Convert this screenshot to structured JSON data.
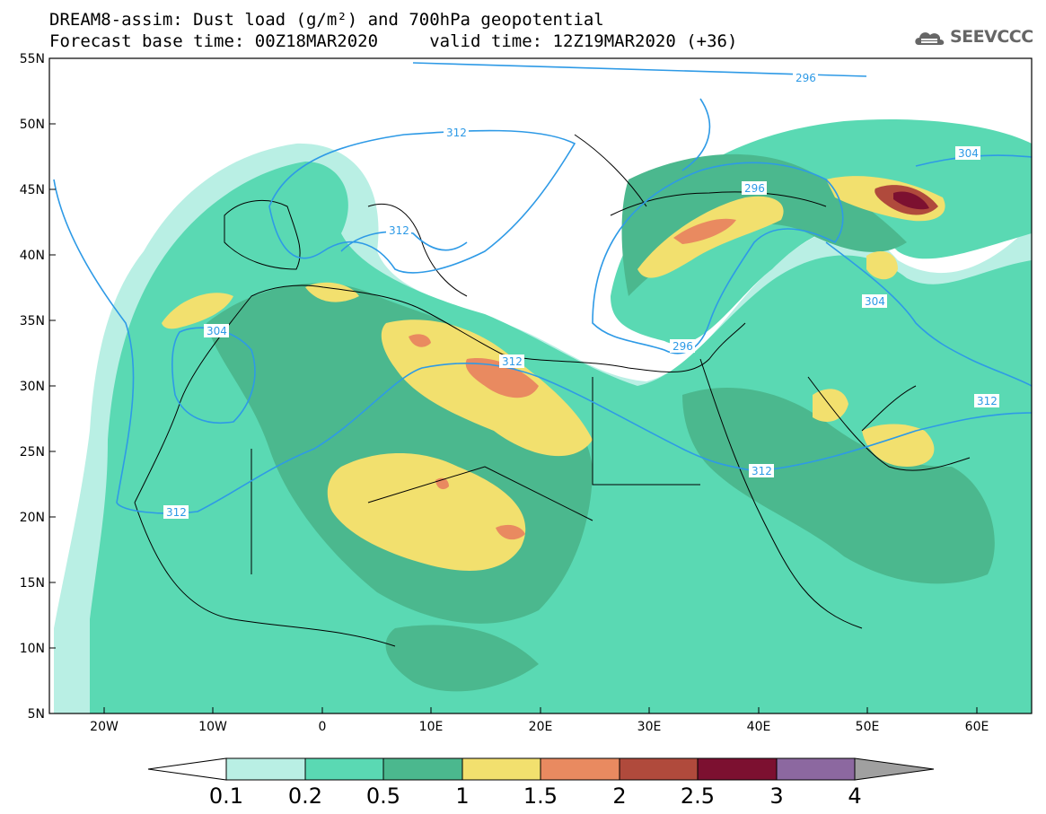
{
  "title_line1": "DREAM8-assim: Dust load (g/m²) and 700hPa geopotential",
  "title_line2": "Forecast base time: 00Z18MAR2020     valid time: 12Z19MAR2020 (+36)",
  "logo_text": "SEEVCCC",
  "map": {
    "lon_range": [
      -25,
      65
    ],
    "lat_range": [
      5,
      55
    ],
    "lat_ticks": [
      "55N",
      "50N",
      "45N",
      "40N",
      "35N",
      "30N",
      "25N",
      "20N",
      "15N",
      "10N",
      "5N"
    ],
    "lon_ticks": [
      "20W",
      "10W",
      "0",
      "10E",
      "20E",
      "30E",
      "40E",
      "50E",
      "60E"
    ],
    "contour_labels": [
      "296",
      "312",
      "304",
      "296",
      "312",
      "312",
      "304",
      "296",
      "312",
      "312",
      "304"
    ]
  },
  "colorbar": {
    "labels": [
      "0.1",
      "0.2",
      "0.5",
      "1",
      "1.5",
      "2",
      "2.5",
      "3",
      "4"
    ],
    "colors": [
      "#ffffff",
      "#b9efe4",
      "#5ad9b3",
      "#4bb88e",
      "#f2e06e",
      "#e98a60",
      "#b04a3c",
      "#7c1030",
      "#8c68a0",
      "#a0a0a0"
    ]
  },
  "colors": {
    "contour": "#2e9ae6",
    "light_dust": "#b9efe4",
    "medium_dust": "#5ad9b3",
    "heavy_dust": "#4bb88e",
    "yellow": "#f2e06e",
    "orange": "#e98a60"
  }
}
